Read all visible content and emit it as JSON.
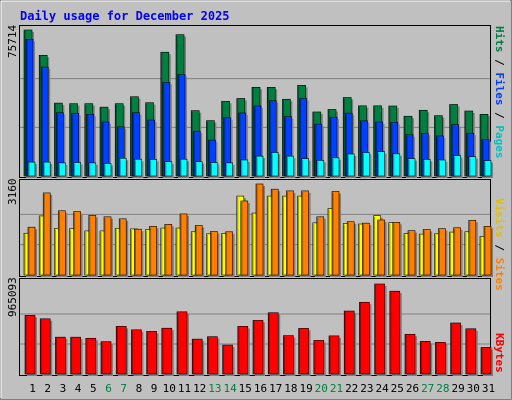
{
  "chart_data": {
    "type": "bar",
    "title": "Daily usage for December 2025",
    "categories": [
      "1",
      "2",
      "3",
      "4",
      "5",
      "6",
      "7",
      "8",
      "9",
      "10",
      "11",
      "12",
      "13",
      "14",
      "15",
      "16",
      "17",
      "18",
      "19",
      "20",
      "21",
      "22",
      "23",
      "24",
      "25",
      "26",
      "27",
      "28",
      "29",
      "30",
      "31"
    ],
    "weekend_days": [
      "6",
      "7",
      "13",
      "14",
      "20",
      "21",
      "27",
      "28"
    ],
    "panels": [
      {
        "id": "top",
        "ylim": [
          0,
          75714
        ],
        "max_label": "75714",
        "right_label": [
          "Pages",
          "/",
          "Files",
          "/",
          "Hits"
        ],
        "series": [
          {
            "name": "Hits",
            "color": "#008040",
            "values": [
              75714,
              62600,
              37800,
              37500,
              37500,
              35700,
              37500,
              41100,
              38000,
              64200,
              73300,
              33900,
              28700,
              38700,
              40200,
              46000,
              46000,
              39800,
              47000,
              33200,
              34500,
              40700,
              36400,
              36400,
              36300,
              31000,
              34100,
              31300,
              37100,
              33700,
              32000
            ]
          },
          {
            "name": "Files",
            "color": "#0040ff",
            "values": [
              70900,
              56500,
              32800,
              32500,
              32000,
              28000,
              25500,
              32800,
              29000,
              48500,
              52600,
              23200,
              18600,
              30200,
              32700,
              36300,
              39000,
              30800,
              40200,
              26900,
              30500,
              32600,
              28600,
              28000,
              27800,
              21400,
              22100,
              20800,
              26600,
              22200,
              18900
            ]
          },
          {
            "name": "Pages",
            "color": "#00ffff",
            "values": [
              7200,
              7200,
              6800,
              7000,
              6800,
              6500,
              9200,
              8700,
              8600,
              7400,
              8700,
              7400,
              7000,
              6800,
              8300,
              10300,
              12200,
              10300,
              9000,
              8100,
              9400,
              11400,
              12200,
              12600,
              11500,
              9000,
              8600,
              8300,
              10600,
              10000,
              8000
            ]
          }
        ]
      },
      {
        "id": "mid",
        "ylim": [
          0,
          3160
        ],
        "max_label": "3160",
        "right_label": [
          "Sites",
          "/",
          "Visits"
        ],
        "series": [
          {
            "name": "Visits",
            "color": "#ffff00",
            "values": [
              1450,
              2050,
              1620,
              1610,
              1530,
              1530,
              1620,
              1600,
              1580,
              1630,
              1630,
              1500,
              1430,
              1440,
              2740,
              2150,
              2740,
              2740,
              2740,
              1810,
              2310,
              1790,
              1770,
              2060,
              1820,
              1440,
              1420,
              1430,
              1490,
              1500,
              1340
            ]
          },
          {
            "name": "Sites",
            "color": "#ff8000",
            "values": [
              1660,
              2850,
              2230,
              2200,
              2070,
              2020,
              1950,
              1590,
              1690,
              1760,
              2120,
              1720,
              1510,
              1500,
              2570,
              3160,
              2980,
              2920,
              2920,
              2020,
              2900,
              1850,
              1800,
              1910,
              1830,
              1540,
              1580,
              1610,
              1640,
              1900,
              1690
            ]
          }
        ]
      },
      {
        "id": "bot",
        "ylim": [
          0,
          965093
        ],
        "max_label": "965093",
        "right_label": [
          "KBytes"
        ],
        "series": [
          {
            "name": "KBytes",
            "color": "#ff0000",
            "values": [
              629000,
              592000,
              395000,
              395000,
              383000,
              347000,
              511000,
              474000,
              457000,
              491000,
              667000,
              374000,
              400000,
              310000,
              511000,
              575000,
              657000,
              412000,
              489000,
              360000,
              409000,
              675000,
              769000,
              965093,
              888000,
              426000,
              350000,
              340000,
              547000,
              485000,
              285000
            ]
          }
        ]
      }
    ]
  }
}
